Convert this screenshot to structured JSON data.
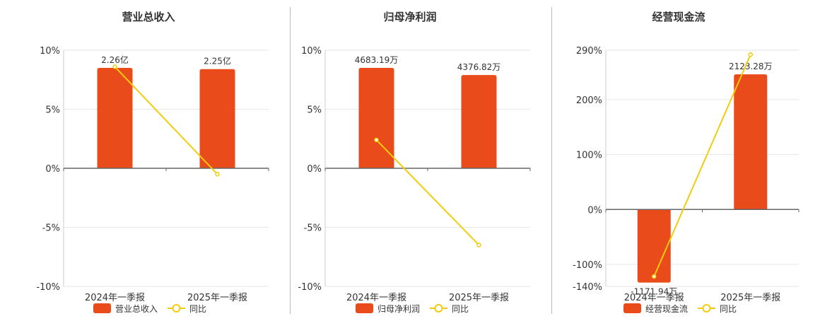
{
  "colors": {
    "bar": "#e94b1b",
    "line": "#f2cc0c",
    "grid": "#e6e6e6",
    "axis": "#666666",
    "text": "#333333"
  },
  "chart_data": [
    {
      "type": "bar",
      "title": "营业总收入",
      "categories": [
        "2024年一季报",
        "2025年一季报"
      ],
      "series": [
        {
          "name": "营业总收入",
          "type": "bar",
          "axis": "left",
          "values": [
            8.5,
            8.4
          ],
          "labels": [
            "2.26亿",
            "2.25亿"
          ]
        },
        {
          "name": "同比",
          "type": "line",
          "axis": "left",
          "values": [
            8.6,
            -0.5
          ]
        }
      ],
      "y_left": {
        "ticks": [
          "10%",
          "5%",
          "0%",
          "-5%",
          "-10%"
        ],
        "min": -10,
        "max": 10
      },
      "grid": true,
      "legend_position": "bottom"
    },
    {
      "type": "bar",
      "title": "归母净利润",
      "categories": [
        "2024年一季报",
        "2025年一季报"
      ],
      "series": [
        {
          "name": "归母净利润",
          "type": "bar",
          "axis": "left",
          "values": [
            8.5,
            7.9
          ],
          "labels": [
            "4683.19万",
            "4376.82万"
          ]
        },
        {
          "name": "同比",
          "type": "line",
          "axis": "left",
          "values": [
            2.4,
            -6.5
          ]
        }
      ],
      "y_left": {
        "ticks": [
          "10%",
          "5%",
          "0%",
          "-5%",
          "-10%"
        ],
        "min": -10,
        "max": 10
      },
      "grid": true,
      "legend_position": "bottom"
    },
    {
      "type": "bar",
      "title": "经营现金流",
      "categories": [
        "2024年一季报",
        "2025年一季报"
      ],
      "series": [
        {
          "name": "经营现金流",
          "type": "bar",
          "axis": "left",
          "values": [
            -133,
            246
          ],
          "labels": [
            "-1171.94万",
            "2123.28万"
          ]
        },
        {
          "name": "同比",
          "type": "line",
          "axis": "left",
          "values": [
            -122,
            282
          ]
        }
      ],
      "y_left": {
        "ticks": [
          "290%",
          "200%",
          "100%",
          "0%",
          "-100%",
          "-140%"
        ],
        "tick_values": [
          290,
          200,
          100,
          0,
          -100,
          -140
        ],
        "min": -140,
        "max": 290
      },
      "grid": true,
      "legend_position": "bottom"
    }
  ]
}
